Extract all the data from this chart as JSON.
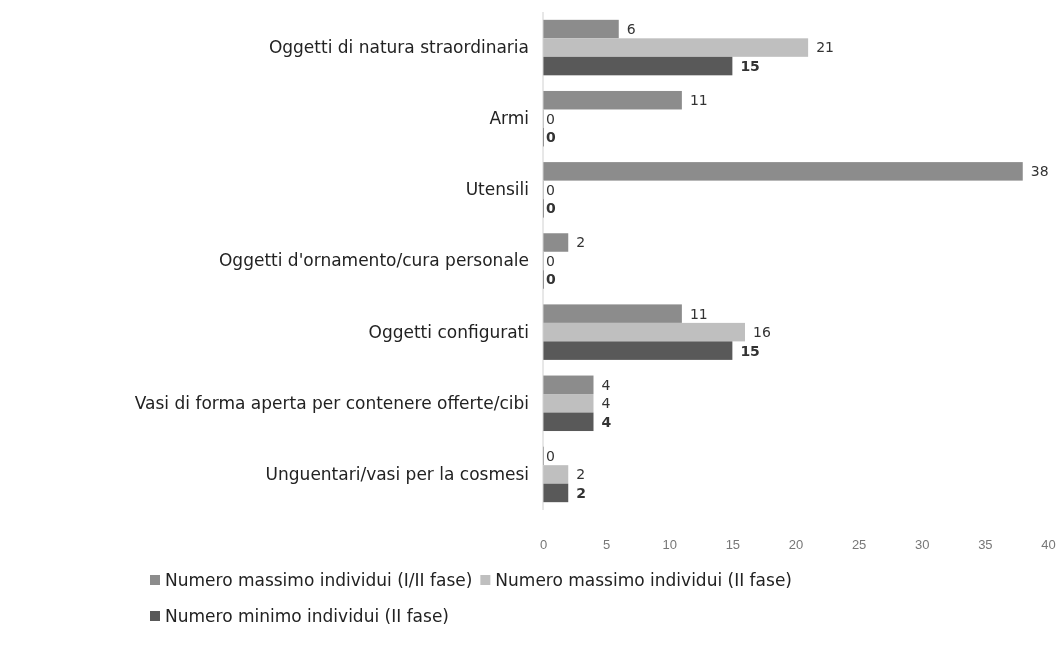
{
  "chart_data": {
    "type": "bar",
    "orientation": "horizontal",
    "categories": [
      "Oggetti di natura straordinaria",
      "Armi",
      "Utensili",
      "Oggetti d'ornamento/cura personale",
      "Oggetti configurati",
      "Vasi di forma aperta per contenere offerte/cibi",
      "Unguentari/vasi per la cosmesi"
    ],
    "series": [
      {
        "name": "Numero massimo individui (I/II fase)",
        "color": "#8c8c8c",
        "values": [
          6,
          11,
          38,
          2,
          11,
          4,
          0
        ]
      },
      {
        "name": "Numero massimo individui (II fase)",
        "color": "#bfbfbf",
        "values": [
          21,
          0,
          0,
          0,
          16,
          4,
          2
        ]
      },
      {
        "name": "Numero minimo individui (II fase)",
        "color": "#595959",
        "values": [
          15,
          0,
          0,
          0,
          15,
          4,
          2
        ]
      }
    ],
    "xlim": [
      0,
      40
    ],
    "xticks": [
      0,
      5,
      10,
      15,
      20,
      25,
      30,
      35,
      40
    ],
    "data_labels": true,
    "legend": "bottom",
    "grid": false
  }
}
